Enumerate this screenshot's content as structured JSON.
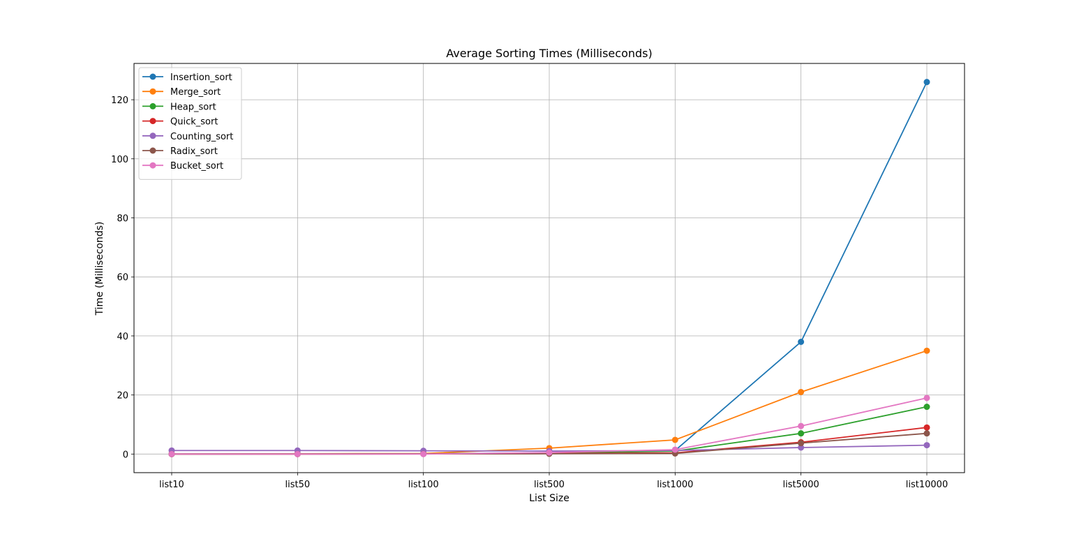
{
  "chart_data": {
    "type": "line",
    "title": "Average Sorting Times (Milliseconds)",
    "xlabel": "List Size",
    "ylabel": "Time (Milliseconds)",
    "categories": [
      "list10",
      "list50",
      "list100",
      "list500",
      "list1000",
      "list5000",
      "list10000"
    ],
    "ylim": [
      -6.3,
      132.3
    ],
    "yticks": [
      0,
      20,
      40,
      60,
      80,
      100,
      120
    ],
    "grid": true,
    "legend_position": "upper-left",
    "series": [
      {
        "name": "Insertion_sort",
        "color": "#1f77b4",
        "values": [
          0.0,
          0.05,
          0.1,
          0.4,
          1.2,
          38.0,
          126.0
        ]
      },
      {
        "name": "Merge_sort",
        "color": "#ff7f0e",
        "values": [
          0.0,
          0.1,
          0.2,
          2.0,
          4.8,
          21.0,
          35.0
        ]
      },
      {
        "name": "Heap_sort",
        "color": "#2ca02c",
        "values": [
          0.0,
          0.05,
          0.1,
          0.3,
          1.0,
          7.0,
          16.0
        ]
      },
      {
        "name": "Quick_sort",
        "color": "#d62728",
        "values": [
          0.0,
          0.0,
          0.05,
          0.2,
          0.4,
          4.0,
          9.0
        ]
      },
      {
        "name": "Counting_sort",
        "color": "#9467bd",
        "values": [
          1.2,
          1.2,
          1.1,
          1.0,
          1.2,
          2.2,
          3.0
        ]
      },
      {
        "name": "Radix_sort",
        "color": "#8c564b",
        "values": [
          0.0,
          0.0,
          0.05,
          0.1,
          0.2,
          3.7,
          7.0
        ]
      },
      {
        "name": "Bucket_sort",
        "color": "#e377c2",
        "values": [
          0.0,
          0.0,
          0.0,
          0.5,
          1.5,
          9.5,
          19.0
        ]
      }
    ]
  }
}
